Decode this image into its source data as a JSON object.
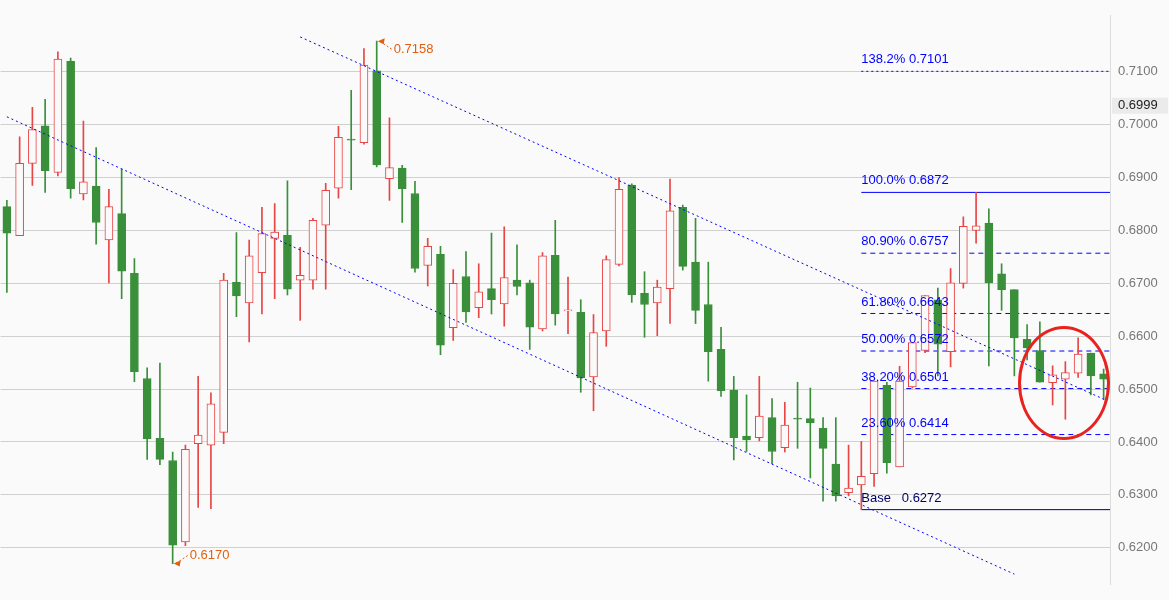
{
  "chart_data": {
    "type": "candlestick",
    "categories": [
      null,
      null,
      null,
      null,
      null,
      null,
      null,
      null,
      null,
      null,
      null,
      null,
      null,
      null,
      null,
      null,
      null,
      null,
      null,
      null,
      null,
      null,
      null,
      null,
      null,
      null,
      null,
      null,
      null,
      null,
      null,
      null,
      null,
      null,
      null,
      null,
      null,
      null,
      null,
      null,
      null,
      null,
      null,
      null,
      null,
      null,
      null,
      null,
      null,
      null,
      null,
      null,
      null,
      null,
      null,
      null,
      null,
      null,
      null,
      null,
      null,
      null,
      null,
      null,
      null,
      null,
      null,
      null,
      null,
      null,
      null,
      null,
      null,
      null,
      null,
      null,
      null,
      null,
      null,
      null,
      null,
      null,
      null,
      null,
      null,
      null,
      null
    ],
    "ohlc": [
      [
        0.6845,
        0.6857,
        0.6683,
        0.6795
      ],
      [
        0.679,
        0.6977,
        0.679,
        0.6927
      ],
      [
        0.6927,
        0.7033,
        0.6885,
        0.6991
      ],
      [
        0.6998,
        0.7048,
        0.6872,
        0.6913
      ],
      [
        0.691,
        0.7138,
        0.6903,
        0.7124
      ],
      [
        0.712,
        0.7126,
        0.6861,
        0.6879
      ],
      [
        0.6869,
        0.7007,
        0.6858,
        0.6892
      ],
      [
        0.6884,
        0.6957,
        0.6774,
        0.6815
      ],
      [
        0.6782,
        0.6878,
        0.6701,
        0.6845
      ],
      [
        0.6832,
        0.6916,
        0.6671,
        0.6723
      ],
      [
        0.6719,
        0.6747,
        0.6514,
        0.6533
      ],
      [
        0.652,
        0.654,
        0.6367,
        0.6406
      ],
      [
        0.6407,
        0.6549,
        0.6357,
        0.6367
      ],
      [
        0.6365,
        0.6381,
        0.617,
        0.6205
      ],
      [
        0.6211,
        0.6394,
        0.6204,
        0.6386
      ],
      [
        0.6397,
        0.6524,
        0.6276,
        0.6413
      ],
      [
        0.6394,
        0.6493,
        0.6274,
        0.6472
      ],
      [
        0.6418,
        0.6719,
        0.6397,
        0.6706
      ],
      [
        0.6702,
        0.6796,
        0.6637,
        0.6676
      ],
      [
        0.6663,
        0.6782,
        0.6589,
        0.6752
      ],
      [
        0.672,
        0.6844,
        0.6642,
        0.6794
      ],
      [
        0.6785,
        0.6851,
        0.6671,
        0.6797
      ],
      [
        0.6791,
        0.6894,
        0.6678,
        0.6689
      ],
      [
        0.6706,
        0.6768,
        0.663,
        0.6715
      ],
      [
        0.6706,
        0.6823,
        0.6689,
        0.6819
      ],
      [
        0.681,
        0.6889,
        0.6689,
        0.6876
      ],
      [
        0.688,
        0.6997,
        0.6861,
        0.6976
      ],
      [
        0.6973,
        0.7065,
        0.6877,
        0.6971
      ],
      [
        0.6966,
        0.7144,
        0.6963,
        0.7113
      ],
      [
        0.7102,
        0.7158,
        0.692,
        0.6924
      ],
      [
        0.6898,
        0.7013,
        0.6857,
        0.6919
      ],
      [
        0.6918,
        0.6923,
        0.6815,
        0.6879
      ],
      [
        0.687,
        0.6893,
        0.6721,
        0.6728
      ],
      [
        0.6734,
        0.6785,
        0.6695,
        0.677
      ],
      [
        0.6755,
        0.677,
        0.6565,
        0.6583
      ],
      [
        0.6616,
        0.6726,
        0.6592,
        0.67
      ],
      [
        0.6713,
        0.676,
        0.6626,
        0.6646
      ],
      [
        0.6654,
        0.6737,
        0.6635,
        0.6684
      ],
      [
        0.669,
        0.6795,
        0.6642,
        0.6669
      ],
      [
        0.6661,
        0.6807,
        0.6619,
        0.6711
      ],
      [
        0.6706,
        0.6773,
        0.6678,
        0.6694
      ],
      [
        0.6701,
        0.6706,
        0.6575,
        0.6617
      ],
      [
        0.6614,
        0.6758,
        0.661,
        0.6752
      ],
      [
        0.6753,
        0.6819,
        0.6621,
        0.6642
      ],
      [
        0.6648,
        0.6712,
        0.6605,
        0.665
      ],
      [
        0.6645,
        0.6669,
        0.6494,
        0.6521
      ],
      [
        0.6523,
        0.6641,
        0.6459,
        0.6607
      ],
      [
        0.661,
        0.6752,
        0.6581,
        0.6745
      ],
      [
        0.6736,
        0.69,
        0.6733,
        0.6878
      ],
      [
        0.6886,
        0.6888,
        0.6664,
        0.6678
      ],
      [
        0.6681,
        0.6722,
        0.6598,
        0.666
      ],
      [
        0.6663,
        0.6706,
        0.6601,
        0.6693
      ],
      [
        0.669,
        0.6897,
        0.6624,
        0.6837
      ],
      [
        0.6844,
        0.6848,
        0.6725,
        0.6732
      ],
      [
        0.674,
        0.6823,
        0.6624,
        0.6649
      ],
      [
        0.666,
        0.674,
        0.6515,
        0.6571
      ],
      [
        0.6575,
        0.6617,
        0.6486,
        0.6497
      ],
      [
        0.6498,
        0.6524,
        0.6366,
        0.6408
      ],
      [
        0.6411,
        0.6489,
        0.6382,
        0.6404
      ],
      [
        0.6408,
        0.6524,
        0.6402,
        0.6449
      ],
      [
        0.6446,
        0.6482,
        0.6359,
        0.6382
      ],
      [
        0.6389,
        0.6475,
        0.6381,
        0.6432
      ],
      [
        0.6445,
        0.6513,
        0.6388,
        0.6443
      ],
      [
        0.6444,
        0.6502,
        0.6332,
        0.6436
      ],
      [
        0.6426,
        0.6446,
        0.6288,
        0.6388
      ],
      [
        0.6358,
        0.6446,
        0.6288,
        0.6298
      ],
      [
        0.6304,
        0.6394,
        0.6298,
        0.6313
      ],
      [
        0.6319,
        0.6401,
        0.6272,
        0.6335
      ],
      [
        0.634,
        0.6515,
        0.6316,
        0.6515
      ],
      [
        0.6507,
        0.6513,
        0.6341,
        0.6361
      ],
      [
        0.6353,
        0.6543,
        0.6353,
        0.6515
      ],
      [
        0.6504,
        0.6588,
        0.6502,
        0.6588
      ],
      [
        0.6573,
        0.6677,
        0.6569,
        0.6677
      ],
      [
        0.6669,
        0.6691,
        0.6525,
        0.6585
      ],
      [
        0.6571,
        0.6728,
        0.6542,
        0.6701
      ],
      [
        0.67,
        0.6826,
        0.6691,
        0.6808
      ],
      [
        0.68,
        0.6872,
        0.6776,
        0.6809
      ],
      [
        0.6814,
        0.6841,
        0.6544,
        0.6701
      ],
      [
        0.6718,
        0.6737,
        0.6649,
        0.6688
      ],
      [
        0.6688,
        0.6688,
        0.6525,
        0.6597
      ],
      [
        0.6594,
        0.6622,
        0.6555,
        0.6578
      ],
      [
        0.6573,
        0.6627,
        0.6513,
        0.6513
      ],
      [
        0.6512,
        0.6544,
        0.647,
        0.6527
      ],
      [
        0.6519,
        0.6552,
        0.6443,
        0.6531
      ],
      [
        0.653,
        0.6597,
        0.6522,
        0.6566
      ],
      [
        0.6568,
        0.6568,
        0.6489,
        0.6525
      ],
      [
        0.6529,
        0.6538,
        0.648,
        0.6519
      ]
    ],
    "colors": [
      "#3a8f3a",
      "#e84545",
      "#e84545",
      "#3a8f3a",
      "#e84545",
      "#3a8f3a",
      "#e84545",
      "#3a8f3a",
      "#e84545",
      "#3a8f3a",
      "#3a8f3a",
      "#3a8f3a",
      "#3a8f3a",
      "#3a8f3a",
      "#e84545",
      "#e84545",
      "#e84545",
      "#e84545",
      "#3a8f3a",
      "#e84545",
      "#e84545",
      "#e84545",
      "#3a8f3a",
      "#e84545",
      "#e84545",
      "#e84545",
      "#e84545",
      "#3a8f3a",
      "#e84545",
      "#3a8f3a",
      "#e84545",
      "#3a8f3a",
      "#3a8f3a",
      "#e84545",
      "#3a8f3a",
      "#e84545",
      "#3a8f3a",
      "#e84545",
      "#3a8f3a",
      "#e84545",
      "#3a8f3a",
      "#3a8f3a",
      "#e84545",
      "#3a8f3a",
      "#e84545",
      "#3a8f3a",
      "#e84545",
      "#e84545",
      "#e84545",
      "#3a8f3a",
      "#3a8f3a",
      "#e84545",
      "#e84545",
      "#3a8f3a",
      "#3a8f3a",
      "#3a8f3a",
      "#3a8f3a",
      "#3a8f3a",
      "#3a8f3a",
      "#e84545",
      "#3a8f3a",
      "#e84545",
      "#3a8f3a",
      "#3a8f3a",
      "#3a8f3a",
      "#3a8f3a",
      "#e84545",
      "#e84545",
      "#e84545",
      "#3a8f3a",
      "#e84545",
      "#e84545",
      "#e84545",
      "#3a8f3a",
      "#e84545",
      "#e84545",
      "#e84545",
      "#3a8f3a",
      "#3a8f3a",
      "#3a8f3a",
      "#3a8f3a",
      "#3a8f3a",
      "#e84545",
      "#e84545",
      "#e84545",
      "#3a8f3a",
      "#3a8f3a"
    ],
    "series": [
      {
        "type": "line",
        "color": "#0000ff",
        "line_style": "dotted",
        "values": [
          0.7015,
          null,
          null,
          null,
          null,
          null,
          null,
          null,
          null,
          null,
          null,
          null,
          null,
          null,
          null,
          null,
          null,
          null,
          null,
          null,
          null,
          null,
          null,
          null,
          null,
          null,
          null,
          null,
          null,
          null,
          null,
          null,
          null,
          null,
          null,
          null,
          null,
          null,
          null,
          null,
          null,
          null,
          null,
          null,
          null,
          null,
          null,
          null,
          null,
          null,
          null,
          null,
          null,
          null,
          null,
          null,
          null,
          null,
          null,
          null,
          null,
          null,
          null,
          null,
          null,
          null,
          null,
          null,
          null,
          null,
          null,
          null,
          null,
          null,
          null,
          null,
          null,
          null,
          null,
          0.615,
          null,
          null,
          null,
          null,
          null,
          null,
          null
        ]
      },
      {
        "type": "line",
        "color": "#0000ff",
        "line_style": "dotted",
        "values": [
          null,
          null,
          null,
          null,
          null,
          null,
          null,
          null,
          null,
          null,
          null,
          null,
          null,
          null,
          null,
          null,
          null,
          null,
          null,
          null,
          null,
          null,
          null,
          0.7166,
          null,
          null,
          null,
          null,
          null,
          null,
          null,
          null,
          null,
          null,
          null,
          null,
          null,
          null,
          null,
          null,
          null,
          null,
          null,
          null,
          null,
          null,
          null,
          null,
          null,
          null,
          null,
          null,
          null,
          null,
          null,
          null,
          null,
          null,
          null,
          null,
          null,
          null,
          null,
          null,
          null,
          null,
          null,
          null,
          null,
          null,
          null,
          null,
          null,
          null,
          null,
          null,
          null,
          null,
          null,
          null,
          null,
          null,
          null,
          null,
          null,
          null,
          0.6481
        ]
      }
    ],
    "ylim": [
      0.6131,
      0.7206
    ],
    "yticks": [
      {
        "value": 0.62,
        "label": "0.6200"
      },
      {
        "value": 0.63,
        "label": "0.6300"
      },
      {
        "value": 0.64,
        "label": "0.6400"
      },
      {
        "value": 0.65,
        "label": "0.6500"
      },
      {
        "value": 0.66,
        "label": "0.6600"
      },
      {
        "value": 0.67,
        "label": "0.6700"
      },
      {
        "value": 0.68,
        "label": "0.6800"
      },
      {
        "value": 0.69,
        "label": "0.6900"
      },
      {
        "value": 0.7,
        "label": "0.7000"
      },
      {
        "value": 0.71,
        "label": "0.7100"
      }
    ],
    "ref_lines": [
      {
        "axis": "y",
        "value": 0.7101,
        "label": "138.2% 0.7101",
        "color": "#0000ff",
        "line_style": "dotted"
      },
      {
        "axis": "y",
        "value": 0.6872,
        "label": "100.0% 0.6872",
        "color": "#0000ff",
        "line_style": "solid"
      },
      {
        "axis": "y",
        "value": 0.6757,
        "label": "80.90% 0.6757",
        "color": "#0000ff",
        "line_style": "dashed"
      },
      {
        "axis": "y",
        "value": 0.6643,
        "label": "61.80% 0.6643",
        "color": "#0000ff",
        "line_style": "dashed"
      },
      {
        "axis": "y",
        "value": 0.6572,
        "label": "50.00% 0.6572",
        "color": "#0000ff",
        "line_style": "dashed"
      },
      {
        "axis": "y",
        "value": 0.6501,
        "label": "38.20% 0.6501",
        "color": "#0000ff",
        "line_style": "dashed"
      },
      {
        "axis": "y",
        "value": 0.6414,
        "label": "23.60% 0.6414",
        "color": "#0000ff",
        "line_style": "dashed"
      },
      {
        "axis": "y",
        "value": 0.6272,
        "label": "Base   0.6272",
        "color": "#000066",
        "line_style": "solid"
      }
    ],
    "annotations": [
      "0.7158",
      "0.6170",
      "0.6999"
    ],
    "grid": "y",
    "tick_labels": "y"
  }
}
